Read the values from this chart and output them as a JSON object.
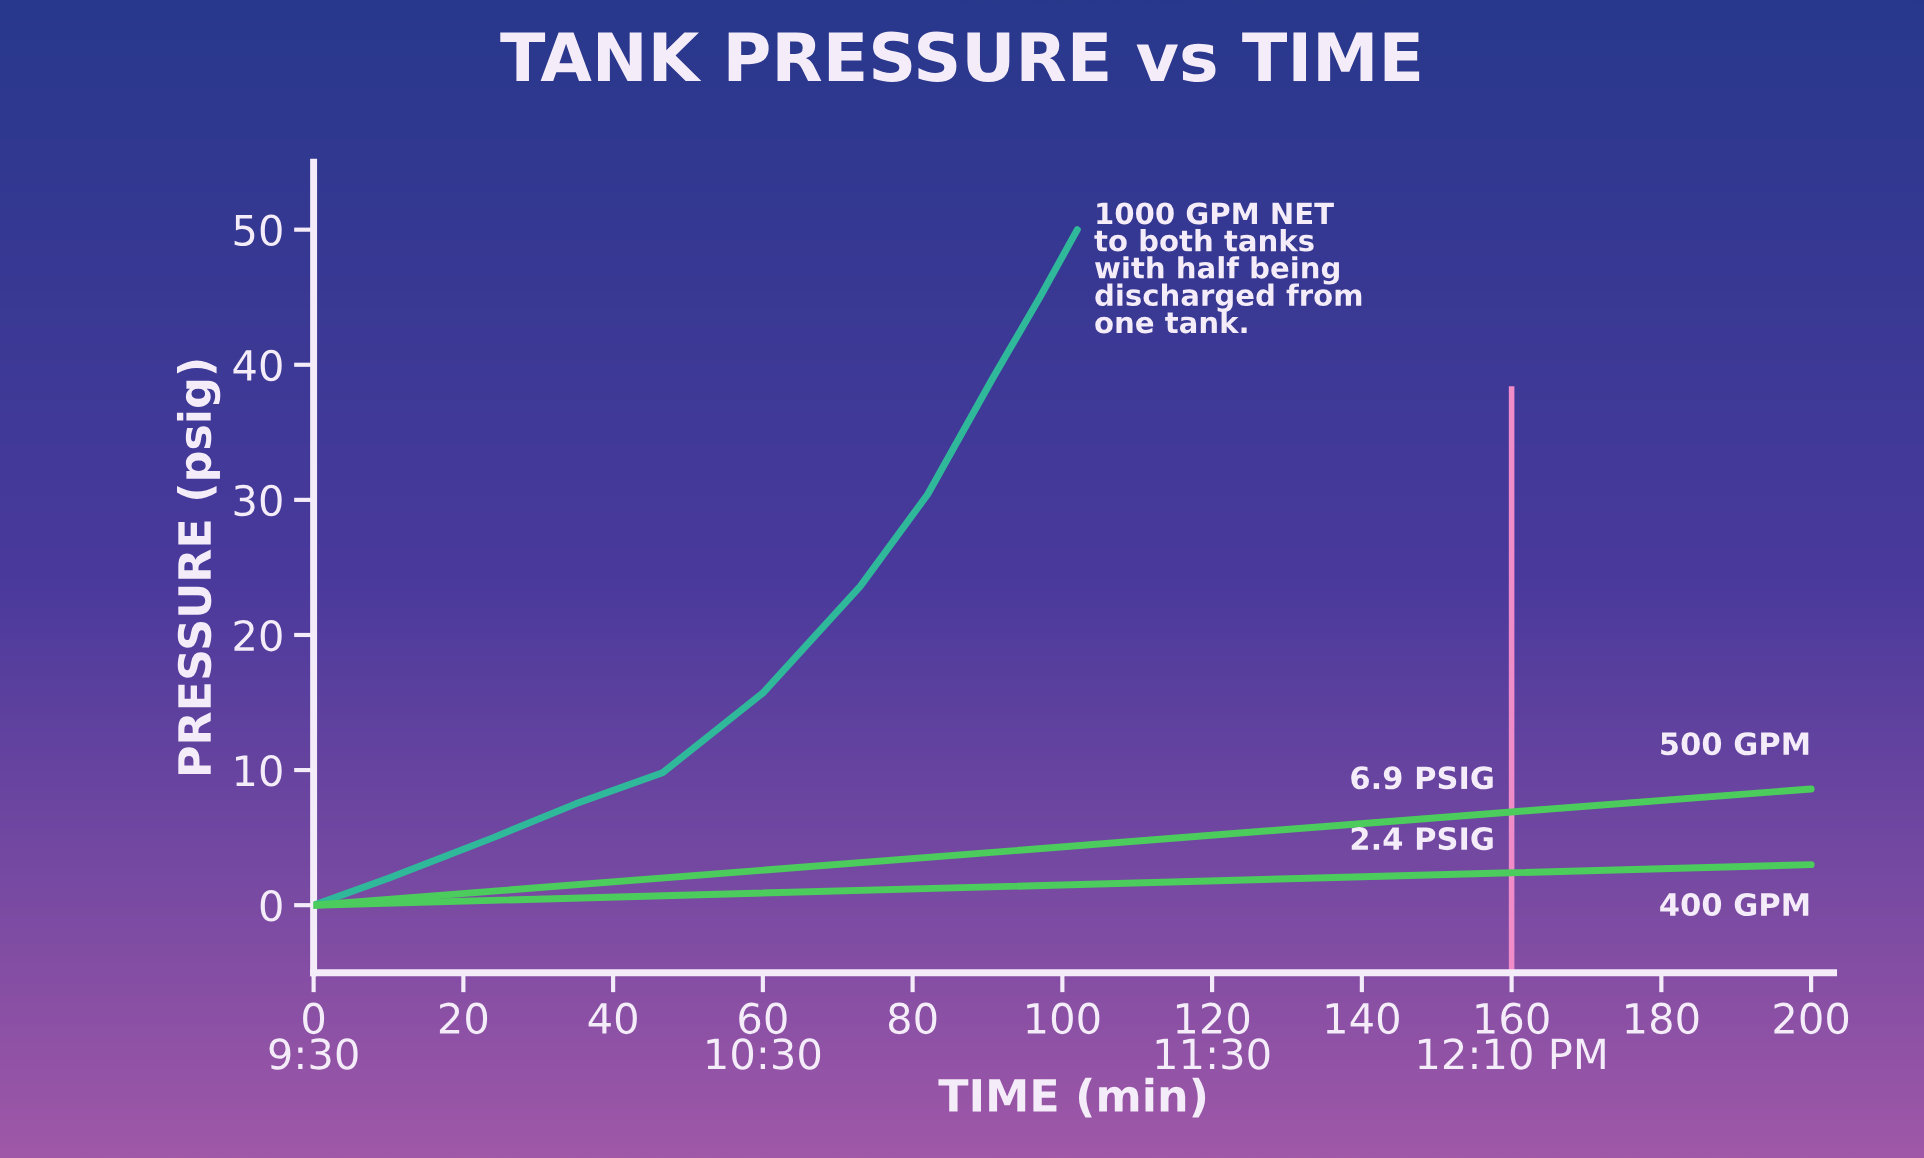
{
  "chart_data": {
    "type": "line",
    "title": "TANK PRESSURE vs TIME",
    "xlabel": "TIME (min)",
    "ylabel": "PRESSURE (psig)",
    "series": [
      {
        "name": "1000 GPM NET\nto both tanks\nwith half being\ndischarged from\none tank.",
        "color": "#2fb89a",
        "x": [
          0,
          10,
          24,
          35,
          46.6,
          60,
          73,
          82,
          90.7,
          97,
          102
        ],
        "values": [
          0,
          2,
          5,
          7.5,
          9.8,
          15.7,
          23.6,
          30.4,
          39,
          45,
          50
        ]
      },
      {
        "name": "500 GPM",
        "color": "#4ccc5c",
        "x": [
          0,
          160,
          200
        ],
        "values": [
          0,
          6.9,
          8.6
        ]
      },
      {
        "name": "400 GPM",
        "color": "#4ccc5c",
        "x": [
          0,
          160,
          200
        ],
        "values": [
          0,
          2.4,
          3.0
        ]
      }
    ],
    "xlim": [
      0,
      203
    ],
    "ylim": [
      -5,
      55
    ],
    "xticks": [
      {
        "value": 0,
        "label": "0\n9:30"
      },
      20,
      40,
      {
        "value": 60,
        "label": "60\n10:30"
      },
      80,
      100,
      {
        "value": 120,
        "label": "120\n11:30"
      },
      140,
      {
        "value": 160,
        "label": "160\n12:10 PM"
      },
      180,
      200
    ],
    "yticks": [
      0,
      10,
      20,
      30,
      40,
      50
    ],
    "ref_lines": [
      {
        "axis": "x",
        "value": 160,
        "label": null,
        "color": "#f08cc8"
      }
    ],
    "annotations": [
      {
        "text": "6.9 PSIG",
        "x": 160,
        "y": 6.9
      },
      {
        "text": "2.4 PSIG",
        "x": 160,
        "y": 2.4
      }
    ],
    "grid": false,
    "legend": false,
    "marker": "none",
    "line_style": "solid"
  }
}
